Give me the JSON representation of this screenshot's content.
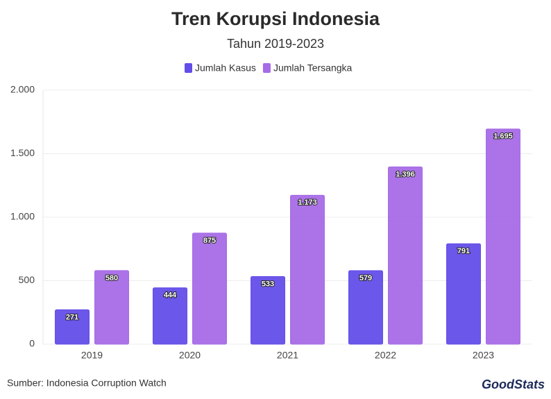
{
  "chart_data": {
    "type": "bar",
    "title": "Tren Korupsi Indonesia",
    "subtitle": "Tahun 2019-2023",
    "categories": [
      "2019",
      "2020",
      "2021",
      "2022",
      "2023"
    ],
    "series": [
      {
        "name": "Jumlah Kasus",
        "color": "#634ee8",
        "values": [
          271,
          444,
          533,
          579,
          791
        ]
      },
      {
        "name": "Jumlah Tersangka",
        "color": "#a66be6",
        "values": [
          580,
          875,
          1173,
          1396,
          1695
        ],
        "value_labels": [
          "580",
          "875",
          "1.173",
          "1.396",
          "1.695"
        ]
      }
    ],
    "ylim": [
      0,
      2000
    ],
    "yticks": [
      0,
      500,
      {
        "value": 1000,
        "label": "1.000"
      },
      {
        "value": 1500,
        "label": "1.500"
      },
      {
        "value": 2000,
        "label": "2.000"
      }
    ],
    "grid": true,
    "legend": "top",
    "source": "Sumber: Indonesia Corruption Watch",
    "logo": "GoodStats"
  }
}
